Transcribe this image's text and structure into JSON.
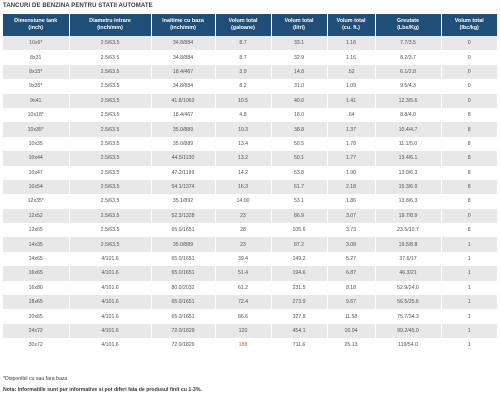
{
  "title": "TANCURI DE BENZINA PENTRU STATII AUTOMATE",
  "table": {
    "headers": [
      {
        "line1": "Dimensiune tank",
        "line2": "(inch)"
      },
      {
        "line1": "Diametru intrare",
        "line2": "(inch/mm)"
      },
      {
        "line1": "Inaltime cu baza",
        "line2": "(inch/mm)"
      },
      {
        "line1": "Volum total",
        "line2": "(galoane)"
      },
      {
        "line1": "Volum total",
        "line2": "(litri)"
      },
      {
        "line1": "Volum total",
        "line2": "(cu. ft.)"
      },
      {
        "line1": "Greutate",
        "line2": "(Lbs/Kg)"
      },
      {
        "line1": "Volum total",
        "line2": "(lbc/kg)"
      }
    ],
    "rows": [
      [
        "10x6*",
        "2.5/63.5",
        "34.8/884",
        "8.7",
        "33.1",
        "1.16",
        "7.7/3.5",
        "0"
      ],
      [
        "8x31",
        "2.5/63.5",
        "34.8/884",
        "8.7",
        "32.9",
        "1.16",
        "8.2/3.7",
        "0"
      ],
      [
        "8x15*",
        "2.5/63.5",
        "18.4/467",
        "3.9",
        "14.8",
        ".52",
        "6.1/2.8",
        "0"
      ],
      [
        "9x35*",
        "2.5/63.5",
        "34.8/884",
        "8.2",
        "31.0",
        "1.09",
        "9.5/4.3",
        "0"
      ],
      [
        "9x41",
        "2.5/63.5",
        "41.8/1062",
        "10.5",
        "40.0",
        "1.41",
        "12.3/5.6",
        "0"
      ],
      [
        "10x18*",
        "2.5/63.5",
        "18.4/467",
        "4.8",
        "18.0",
        ".64",
        "8.8/4.0",
        "8"
      ],
      [
        "10x35*",
        "2.5/63.5",
        "35.0/889",
        "10.3",
        "38.8",
        "1.37",
        "10.4/4.7",
        "8"
      ],
      [
        "10x35",
        "2.5/63.5",
        "35.0/889",
        "13.4",
        "50.5",
        "1.78",
        "11.1/5.0",
        "8"
      ],
      [
        "10x44",
        "2.5/63.5",
        "44.5/1130",
        "13.2",
        "50.1",
        "1.77",
        "13.4/6.1",
        "8"
      ],
      [
        "10x47",
        "2.5/63.5",
        "47.2/1199",
        "14.2",
        "53.8",
        "1.90",
        "13.9/6.3",
        "8"
      ],
      [
        "10x54",
        "2.5/63.5",
        "54.1/1374",
        "16.3",
        "61.7",
        "2.18",
        "15.3/6.9",
        "8"
      ],
      [
        "12x35*",
        "2.5/63.5",
        "35.1/892",
        "14.00",
        "53.1",
        "1.86",
        "13.8/6.3",
        "8"
      ],
      [
        "12x52",
        "2.5/63.5",
        "52.3/1328",
        "23",
        "86.9",
        "3.07",
        "19.7/8.9",
        "0"
      ],
      [
        "12x65",
        "2.5/63.5",
        "65.0/1651",
        "28",
        "105.6",
        "3.73",
        "23.5/10.7",
        "8"
      ],
      [
        "14x35",
        "2.5/63.5",
        "35.0/889",
        "23",
        "87.2",
        "3.08",
        "19.5/8.8",
        "1"
      ],
      [
        "14x65",
        "4/101.6",
        "65.0/1651",
        "39.4",
        "149.2",
        "5.27",
        "37.6/17",
        "1"
      ],
      [
        "16x65",
        "4/101.6",
        "65.0/1651",
        "51.4",
        "194.6",
        "6.87",
        "46.3/21",
        "1"
      ],
      [
        "16x80",
        "4/101.6",
        "80.0/2032",
        "61.2",
        "231.5",
        "8.18",
        "52.9/24.0",
        "1"
      ],
      [
        "18x65",
        "4/101.6",
        "65.0/1651",
        "72.4",
        "273.9",
        "9.67",
        "56.5/25.6",
        "1"
      ],
      [
        "20x65",
        "4/101.6",
        "65.0/1651",
        "86.6",
        "327.8",
        "11.58",
        "75.7/34.3",
        "1"
      ],
      [
        "24x72",
        "4/101.6",
        "72.0/1829",
        "120",
        "454.1",
        "16.04",
        "99.2/45.0",
        "1"
      ],
      [
        "30x72",
        "4/101.6",
        "72.0/1829",
        "188",
        "711.6",
        "25.13",
        "119/54.0",
        "1"
      ]
    ]
  },
  "footnote": "*Disponibil cu sau fara baza",
  "note": "Nota: Informatiile sunt pur informative si pot diferi fata de produsul finit cu 1-3%.",
  "colors": {
    "header_bg": "#1f4e79",
    "header_text": "#ffffff",
    "row_alt_bg": "#e8e8e8",
    "highlight_text": "#d05a2e"
  }
}
